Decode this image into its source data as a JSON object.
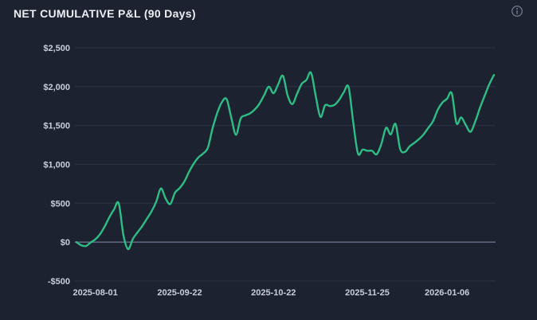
{
  "header": {
    "title": "NET CUMULATIVE P&L (90 Days)",
    "info_icon": "info-icon"
  },
  "colors": {
    "background": "#1c2230",
    "line": "#2ebd85",
    "grid": "#2c3344",
    "zero_line": "#5c657b",
    "axis_label": "#c9cedb",
    "title": "#edeff4",
    "info_icon": "#7b8294"
  },
  "chart_data": {
    "type": "line",
    "title": "NET CUMULATIVE P&L (90 Days)",
    "series_name": "Net Cumulative P&L ($)",
    "grid": true,
    "legend": false,
    "ylim": [
      -500,
      2500
    ],
    "y_ticks": [
      {
        "label": "$2,500",
        "value": 2500
      },
      {
        "label": "$2,000",
        "value": 2000
      },
      {
        "label": "$1,500",
        "value": 1500
      },
      {
        "label": "$1,000",
        "value": 1000
      },
      {
        "label": "$500",
        "value": 500
      },
      {
        "label": "$0",
        "value": 0
      },
      {
        "label": "-$500",
        "value": -500
      }
    ],
    "x_tick_labels": [
      "2025-08-01",
      "2025-09-22",
      "2025-10-22",
      "2025-11-25",
      "2026-01-06"
    ],
    "x_tick_indices": [
      4,
      22,
      42,
      62,
      79
    ],
    "num_points": 90,
    "values": [
      0,
      -40,
      -50,
      -5,
      35,
      100,
      200,
      320,
      420,
      500,
      90,
      -90,
      40,
      125,
      205,
      300,
      395,
      520,
      690,
      560,
      490,
      635,
      695,
      780,
      905,
      1010,
      1090,
      1140,
      1215,
      1460,
      1660,
      1800,
      1840,
      1600,
      1380,
      1590,
      1630,
      1655,
      1705,
      1780,
      1890,
      2000,
      1915,
      2030,
      2140,
      1890,
      1775,
      1905,
      2035,
      2085,
      2180,
      1880,
      1610,
      1760,
      1750,
      1765,
      1830,
      1930,
      1995,
      1540,
      1140,
      1190,
      1175,
      1175,
      1130,
      1265,
      1470,
      1385,
      1520,
      1200,
      1160,
      1230,
      1275,
      1325,
      1385,
      1470,
      1555,
      1700,
      1795,
      1845,
      1915,
      1530,
      1605,
      1505,
      1420,
      1550,
      1725,
      1880,
      2030,
      2150
    ]
  }
}
